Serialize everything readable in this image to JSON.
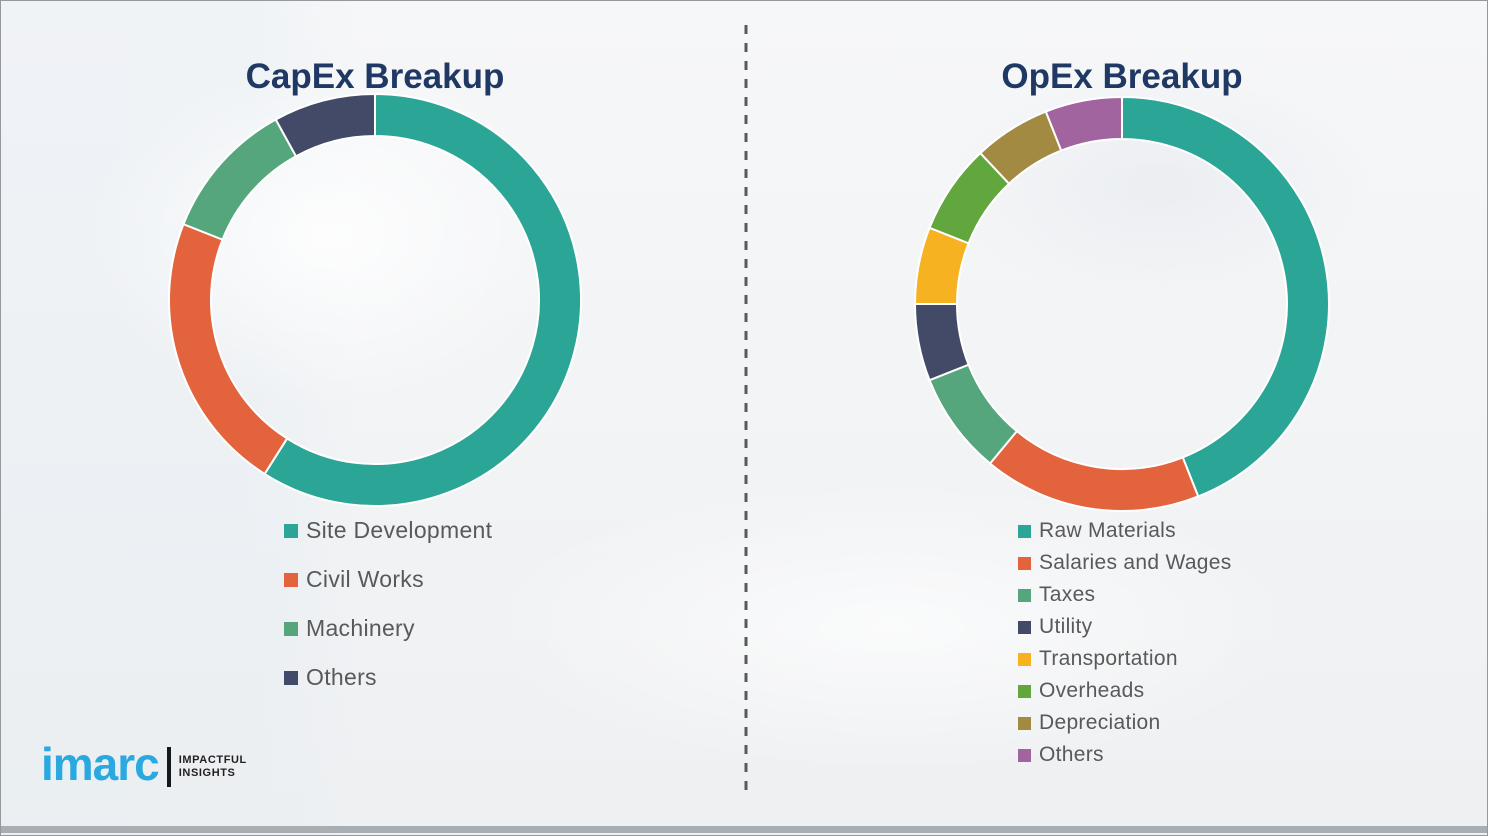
{
  "colors": {
    "title_navy": "#1f3864",
    "legend_text_gray": "#595959",
    "divider_gray": "#58595b",
    "logo_blue": "#2aa9e0",
    "logo_black": "#231f20",
    "segment_gap_white": "#ffffff"
  },
  "chart_data": [
    {
      "type": "pie",
      "variant": "donut",
      "title": "CapEx Breakup",
      "labels": [
        "Site Development",
        "Civil Works",
        "Machinery",
        "Others"
      ],
      "values": [
        59,
        22,
        11,
        8
      ],
      "values_unit": "%",
      "colors": [
        "#2aa596",
        "#e2633c",
        "#55a57d",
        "#424a68"
      ],
      "start_angle_deg": 0,
      "direction": "clockwise",
      "legend_position": "below-left"
    },
    {
      "type": "pie",
      "variant": "donut",
      "title": "OpEx Breakup",
      "labels": [
        "Raw Materials",
        "Salaries and Wages",
        "Taxes",
        "Utility",
        "Transportation",
        "Overheads",
        "Depreciation",
        "Others"
      ],
      "values": [
        44,
        17,
        8,
        6,
        6,
        7,
        6,
        6
      ],
      "values_unit": "%",
      "colors": [
        "#2aa596",
        "#e2633c",
        "#55a57d",
        "#424a68",
        "#f6b220",
        "#62a63e",
        "#a38a42",
        "#a2649e"
      ],
      "start_angle_deg": 0,
      "direction": "clockwise",
      "legend_position": "below-left"
    }
  ],
  "logo": {
    "brand": "imarc",
    "tagline_line1": "IMPACTFUL",
    "tagline_line2": "INSIGHTS"
  }
}
